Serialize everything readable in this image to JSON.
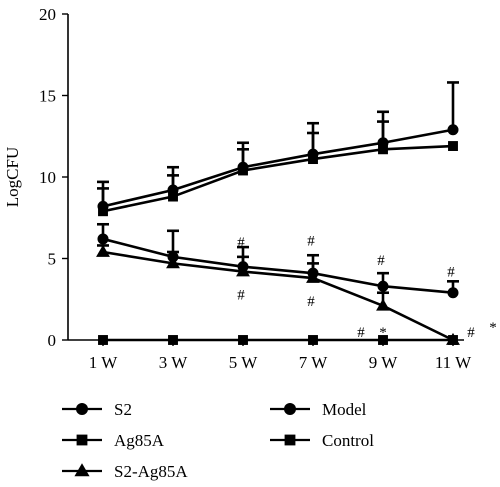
{
  "chart_data": {
    "type": "line",
    "ylabel": "LogCFU",
    "xlabel": "",
    "categories": [
      "1 W",
      "3 W",
      "5 W",
      "7 W",
      "9 W",
      "11 W"
    ],
    "ylim": [
      0,
      20
    ],
    "yticks": [
      0,
      5,
      10,
      15,
      20
    ],
    "grid": false,
    "legend_position": "bottom",
    "colors": {
      "line": "#000000",
      "background": "#ffffff"
    },
    "series": [
      {
        "name": "Model",
        "marker": "circle",
        "values": [
          8.2,
          9.2,
          10.6,
          11.4,
          12.1,
          12.9
        ],
        "errors": [
          1.5,
          1.4,
          1.5,
          1.9,
          1.9,
          2.9
        ]
      },
      {
        "name": "Control",
        "marker": "square",
        "values": [
          7.9,
          8.8,
          10.4,
          11.1,
          11.7,
          11.9
        ],
        "errors": [
          1.4,
          1.3,
          1.3,
          1.6,
          1.7,
          0.0
        ]
      },
      {
        "name": "S2",
        "marker": "circle",
        "values": [
          6.2,
          5.1,
          4.5,
          4.1,
          3.3,
          2.9
        ],
        "errors": [
          0.9,
          1.6,
          1.2,
          1.1,
          0.8,
          0.7
        ]
      },
      {
        "name": "S2-Ag85A",
        "marker": "triangle",
        "values": [
          5.4,
          4.7,
          4.2,
          3.8,
          2.1,
          0.0
        ],
        "errors": [
          0.4,
          0.7,
          0.9,
          0.9,
          0.8,
          0.0
        ]
      },
      {
        "name": "Ag85A",
        "marker": "square",
        "values": [
          0,
          0,
          0,
          0,
          0,
          0
        ],
        "errors": [
          0,
          0,
          0,
          0,
          0,
          0
        ]
      }
    ],
    "annotations": [
      {
        "text": "#",
        "x": "5 W",
        "y": 6.0
      },
      {
        "text": "#",
        "x": "5 W",
        "y": 2.8
      },
      {
        "text": "#",
        "x": "7 W",
        "y": 6.1
      },
      {
        "text": "#",
        "x": "7 W",
        "y": 2.4
      },
      {
        "text": "#",
        "x": "9 W",
        "y": 4.9
      },
      {
        "text": "#",
        "x": "9 W",
        "y": 0.5
      },
      {
        "text": "*",
        "x": "9 W",
        "y": 0.5
      },
      {
        "text": "#",
        "x": "11 W",
        "y": 4.2
      },
      {
        "text": "#",
        "x": "11 W",
        "y": 0.5
      },
      {
        "text": "*",
        "x": "11 W",
        "y": 0.8
      }
    ],
    "legend": {
      "items": [
        {
          "label": "S2",
          "marker": "circle"
        },
        {
          "label": "Ag85A",
          "marker": "square"
        },
        {
          "label": "S2-Ag85A",
          "marker": "triangle"
        },
        {
          "label": "Model",
          "marker": "circle"
        },
        {
          "label": "Control",
          "marker": "square"
        }
      ]
    }
  }
}
